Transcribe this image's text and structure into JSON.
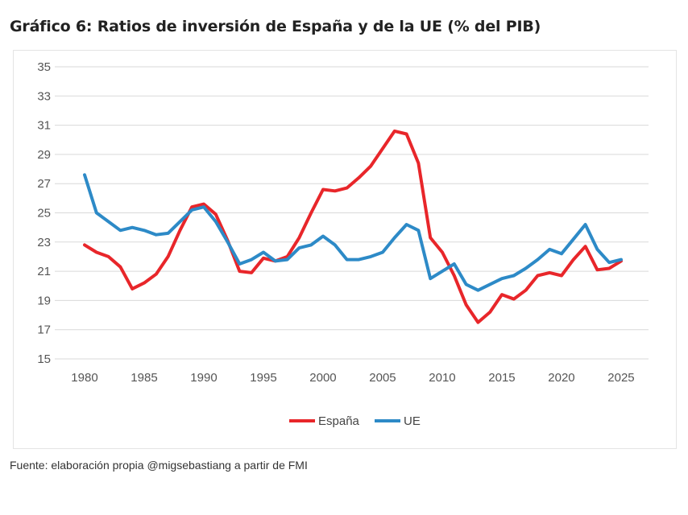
{
  "header": {
    "title": "Gráfico 6: Ratios de inversión de España y de la UE (% del PIB)"
  },
  "footer": {
    "source": "Fuente: elaboración propia @migsebastiang a partir de FMI"
  },
  "chart_data": {
    "type": "line",
    "title": "Gráfico 6: Ratios de inversión de España y de la UE (% del PIB)",
    "xlabel": "",
    "ylabel": "",
    "xlim": [
      1980,
      2025
    ],
    "ylim": [
      15,
      35
    ],
    "yticks": [
      15,
      17,
      19,
      21,
      23,
      25,
      27,
      29,
      31,
      33,
      35
    ],
    "xticks": [
      1980,
      1985,
      1990,
      1995,
      2000,
      2005,
      2010,
      2015,
      2020,
      2025
    ],
    "grid": "horizontal",
    "legend": "bottom",
    "x": [
      1980,
      1981,
      1982,
      1983,
      1984,
      1985,
      1986,
      1987,
      1988,
      1989,
      1990,
      1991,
      1992,
      1993,
      1994,
      1995,
      1996,
      1997,
      1998,
      1999,
      2000,
      2001,
      2002,
      2003,
      2004,
      2005,
      2006,
      2007,
      2008,
      2009,
      2010,
      2011,
      2012,
      2013,
      2014,
      2015,
      2016,
      2017,
      2018,
      2019,
      2020,
      2021,
      2022,
      2023,
      2024,
      2025
    ],
    "series": [
      {
        "name": "España",
        "color": "#e8262a",
        "values": [
          22.8,
          22.3,
          22.0,
          21.3,
          19.8,
          20.2,
          20.8,
          22.0,
          23.8,
          25.4,
          25.6,
          24.9,
          23.1,
          21.0,
          20.9,
          21.9,
          21.7,
          22.0,
          23.3,
          25.0,
          26.6,
          26.5,
          26.7,
          27.4,
          28.2,
          29.4,
          30.6,
          30.4,
          28.4,
          23.3,
          22.3,
          20.7,
          18.7,
          17.5,
          18.2,
          19.4,
          19.1,
          19.7,
          20.7,
          20.9,
          20.7,
          21.8,
          22.7,
          21.1,
          21.2,
          21.7
        ]
      },
      {
        "name": "UE",
        "color": "#2d8ac7",
        "values": [
          27.6,
          25.0,
          24.4,
          23.8,
          24.0,
          23.8,
          23.5,
          23.6,
          24.4,
          25.2,
          25.4,
          24.4,
          23.0,
          21.5,
          21.8,
          22.3,
          21.7,
          21.8,
          22.6,
          22.8,
          23.4,
          22.8,
          21.8,
          21.8,
          22.0,
          22.3,
          23.3,
          24.2,
          23.8,
          20.5,
          21.0,
          21.5,
          20.1,
          19.7,
          20.1,
          20.5,
          20.7,
          21.2,
          21.8,
          22.5,
          22.2,
          23.2,
          24.2,
          22.5,
          21.6,
          21.8
        ]
      }
    ]
  }
}
